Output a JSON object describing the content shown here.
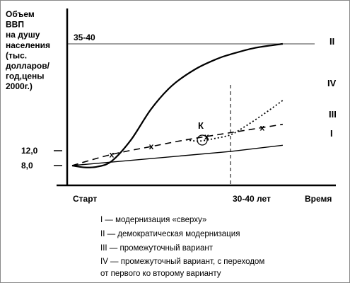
{
  "chart_data": {
    "type": "line",
    "ylabel_lines": [
      "Объем",
      "ВВП",
      "на душу",
      "населения",
      "(тыс.",
      "долларов/",
      "год,цены",
      "2000г.)"
    ],
    "xlabel": "Время",
    "x_ticks": [
      "Старт",
      "30-40 лет"
    ],
    "y_ticks": [
      "12,0",
      "8,0"
    ],
    "top_level_label": "35-40",
    "point_marker": "К",
    "series": [
      {
        "name": "I",
        "color": "#000000",
        "style": "solid-thin",
        "points": [
          [
            0,
            8.0
          ],
          [
            1.0,
            11.8
          ],
          [
            1.33,
            13.3
          ]
        ]
      },
      {
        "name": "II",
        "color": "#000000",
        "style": "solid-thick",
        "points": [
          [
            0,
            8.0
          ],
          [
            0.08,
            7.5
          ],
          [
            0.16,
            7.7
          ],
          [
            0.25,
            9.2
          ],
          [
            0.37,
            14.5
          ],
          [
            0.5,
            22.0
          ],
          [
            0.63,
            27.5
          ],
          [
            0.78,
            31.5
          ],
          [
            0.92,
            34.0
          ],
          [
            1.0,
            35.0
          ],
          [
            1.15,
            36.5
          ],
          [
            1.33,
            37.5
          ]
        ]
      },
      {
        "name": "III",
        "color": "#000000",
        "style": "dashed",
        "markers": [
          0.25,
          0.5,
          0.85,
          1.2
        ],
        "points": [
          [
            0,
            8.0
          ],
          [
            0.25,
            11.0
          ],
          [
            0.5,
            13.0
          ],
          [
            0.72,
            14.6
          ],
          [
            1.0,
            16.3
          ],
          [
            1.33,
            18.3
          ]
        ]
      },
      {
        "name": "IV",
        "color": "#000000",
        "style": "dotted",
        "points": [
          [
            0.72,
            14.6
          ],
          [
            0.8,
            14.3
          ],
          [
            0.9,
            14.9
          ],
          [
            1.0,
            15.8
          ],
          [
            1.08,
            17.5
          ],
          [
            1.2,
            20.5
          ],
          [
            1.33,
            24.0
          ]
        ]
      }
    ]
  },
  "legend_lines": [
    "I  — модернизация «сверху»",
    "II — демократическая модернизация",
    "III — промежуточный вариант",
    "IV — промежуточный вариант, с переходом",
    "от первого ко второму варианту"
  ]
}
